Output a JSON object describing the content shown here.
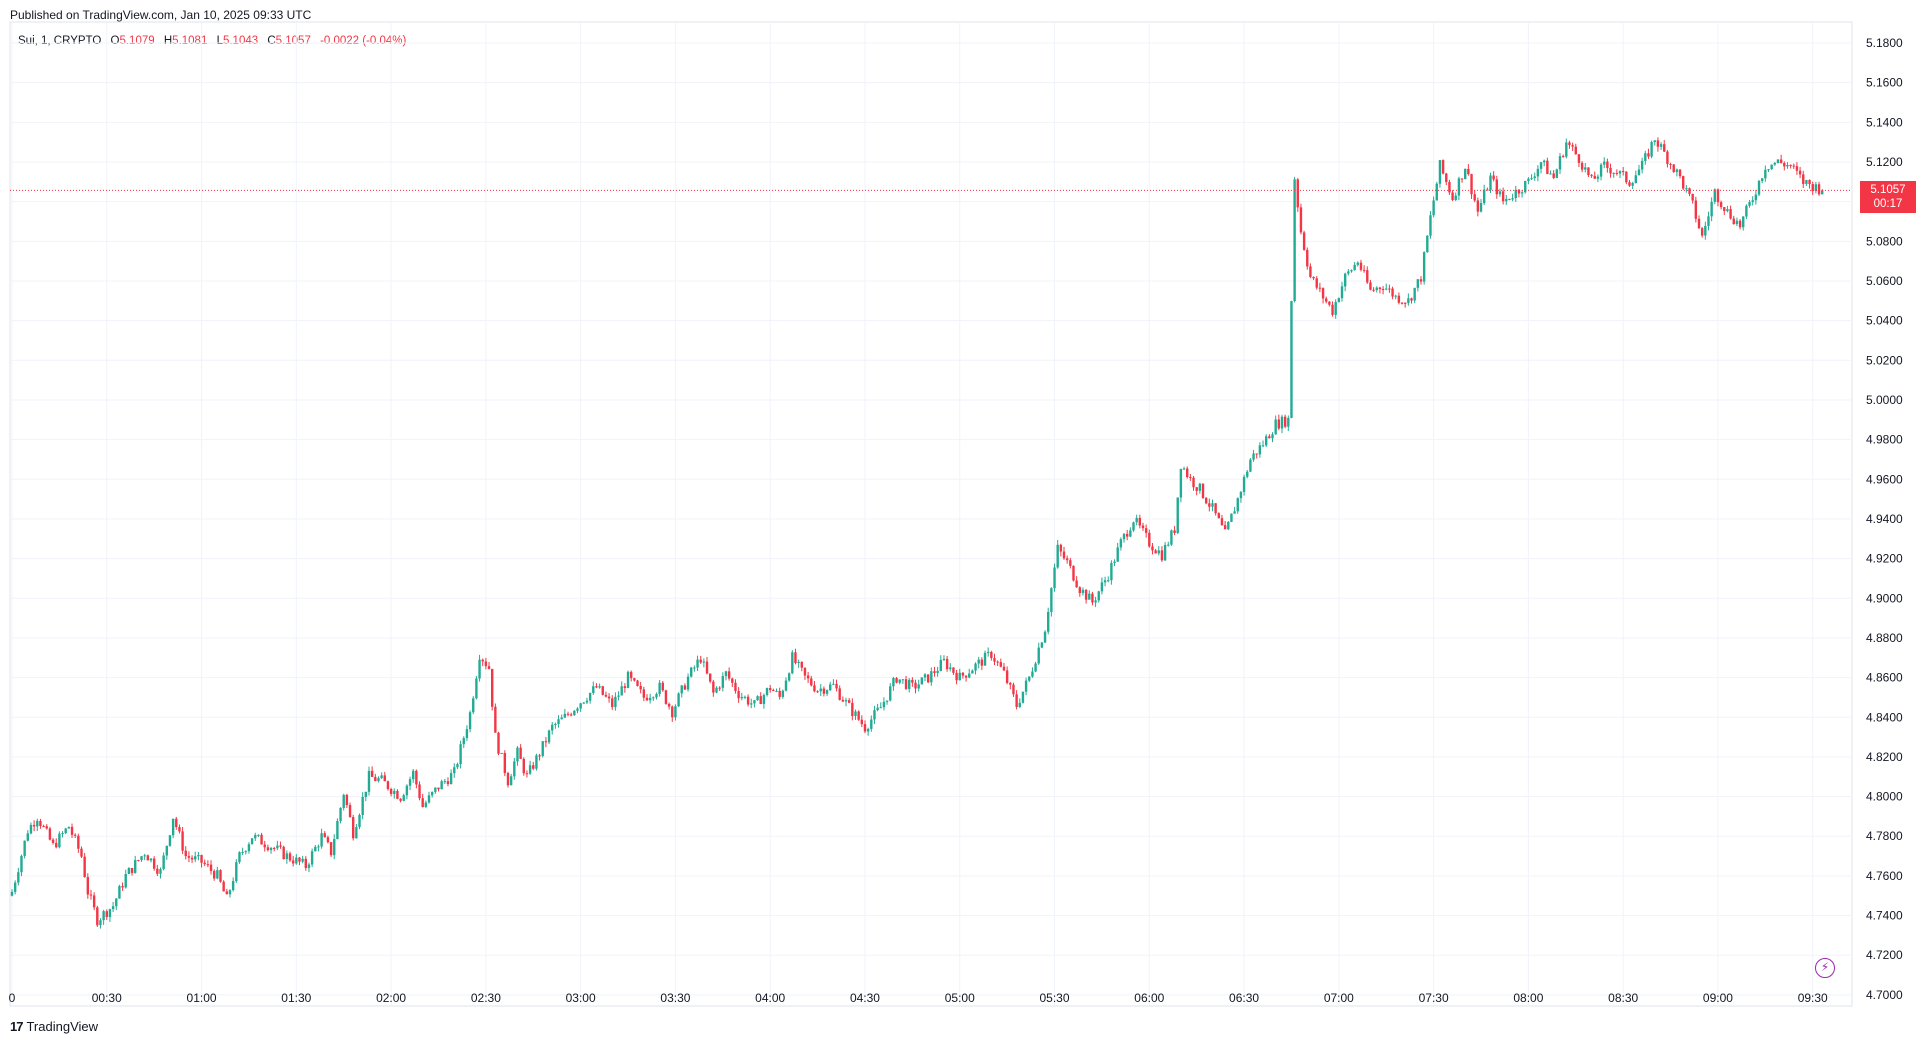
{
  "header": {
    "published": "Published on TradingView.com, Jan 10, 2025 09:33 UTC"
  },
  "legend": {
    "symbol": "Sui, 1, CRYPTO",
    "o_label": "O",
    "o_value": "5.1079",
    "h_label": "H",
    "h_value": "5.1081",
    "l_label": "L",
    "l_value": "5.1043",
    "c_label": "C",
    "c_value": "5.1057",
    "change": "-0.0022 (-0.04%)"
  },
  "price_tag": {
    "price": "5.1057",
    "countdown": "00:17"
  },
  "footer": {
    "brand_logo": "17",
    "brand": "TradingView"
  },
  "colors": {
    "up": "#22ab94",
    "down": "#f23645",
    "grid": "#f0f3fa",
    "last_price_line": "#f23645"
  },
  "chart_data": {
    "type": "candlestick",
    "title": "",
    "xlabel": "",
    "ylabel": "",
    "ylim": [
      4.6944,
      5.1906
    ],
    "y_ticks": [
      "5.1800",
      "5.1600",
      "5.1400",
      "5.1200",
      "5.1000",
      "5.0800",
      "5.0600",
      "5.0400",
      "5.0200",
      "5.0000",
      "4.9800",
      "4.9600",
      "4.9400",
      "4.9200",
      "4.9000",
      "4.8800",
      "4.8600",
      "4.8400",
      "4.8200",
      "4.8000",
      "4.7800",
      "4.7600",
      "4.7400",
      "4.7200",
      "4.7000"
    ],
    "x_ticks": [
      "0",
      "00:30",
      "01:00",
      "01:30",
      "02:00",
      "02:30",
      "03:00",
      "03:30",
      "04:00",
      "04:30",
      "05:00",
      "05:30",
      "06:00",
      "06:30",
      "07:00",
      "07:30",
      "08:00",
      "08:30",
      "09:00",
      "09:30"
    ],
    "last_price": 5.1057,
    "grid": true,
    "close_path": [
      [
        "00:00",
        4.752
      ],
      [
        "00:05",
        4.783
      ],
      [
        "00:08",
        4.79
      ],
      [
        "00:13",
        4.775
      ],
      [
        "00:18",
        4.785
      ],
      [
        "00:22",
        4.77
      ],
      [
        "00:24",
        4.752
      ],
      [
        "00:27",
        4.738
      ],
      [
        "00:32",
        4.745
      ],
      [
        "00:36",
        4.76
      ],
      [
        "00:42",
        4.772
      ],
      [
        "00:47",
        4.762
      ],
      [
        "00:51",
        4.79
      ],
      [
        "00:55",
        4.77
      ],
      [
        "01:00",
        4.767
      ],
      [
        "01:05",
        4.76
      ],
      [
        "01:08",
        4.748
      ],
      [
        "01:12",
        4.77
      ],
      [
        "01:16",
        4.78
      ],
      [
        "01:22",
        4.775
      ],
      [
        "01:27",
        4.77
      ],
      [
        "01:33",
        4.765
      ],
      [
        "01:38",
        4.78
      ],
      [
        "01:41",
        4.772
      ],
      [
        "01:45",
        4.802
      ],
      [
        "01:48",
        4.782
      ],
      [
        "01:53",
        4.81
      ],
      [
        "01:57",
        4.808
      ],
      [
        "02:03",
        4.8
      ],
      [
        "02:07",
        4.812
      ],
      [
        "02:10",
        4.795
      ],
      [
        "02:15",
        4.805
      ],
      [
        "02:20",
        4.812
      ],
      [
        "02:25",
        4.842
      ],
      [
        "02:28",
        4.872
      ],
      [
        "02:31",
        4.865
      ],
      [
        "02:33",
        4.83
      ],
      [
        "02:37",
        4.808
      ],
      [
        "02:40",
        4.822
      ],
      [
        "02:43",
        4.81
      ],
      [
        "02:47",
        4.822
      ],
      [
        "02:51",
        4.835
      ],
      [
        "02:55",
        4.84
      ],
      [
        "03:00",
        4.848
      ],
      [
        "03:05",
        4.855
      ],
      [
        "03:10",
        4.846
      ],
      [
        "03:15",
        4.86
      ],
      [
        "03:20",
        4.85
      ],
      [
        "03:25",
        4.855
      ],
      [
        "03:29",
        4.843
      ],
      [
        "03:34",
        4.86
      ],
      [
        "03:38",
        4.87
      ],
      [
        "03:42",
        4.852
      ],
      [
        "03:46",
        4.862
      ],
      [
        "03:50",
        4.852
      ],
      [
        "03:55",
        4.846
      ],
      [
        "04:00",
        4.855
      ],
      [
        "04:03",
        4.85
      ],
      [
        "04:07",
        4.87
      ],
      [
        "04:11",
        4.86
      ],
      [
        "04:15",
        4.854
      ],
      [
        "04:20",
        4.856
      ],
      [
        "04:25",
        4.845
      ],
      [
        "04:30",
        4.835
      ],
      [
        "04:35",
        4.845
      ],
      [
        "04:40",
        4.86
      ],
      [
        "04:45",
        4.855
      ],
      [
        "04:50",
        4.86
      ],
      [
        "04:55",
        4.868
      ],
      [
        "05:00",
        4.86
      ],
      [
        "05:05",
        4.866
      ],
      [
        "05:10",
        4.872
      ],
      [
        "05:14",
        4.862
      ],
      [
        "05:18",
        4.846
      ],
      [
        "05:22",
        4.86
      ],
      [
        "05:27",
        4.885
      ],
      [
        "05:31",
        4.925
      ],
      [
        "05:34",
        4.918
      ],
      [
        "05:38",
        4.905
      ],
      [
        "05:42",
        4.898
      ],
      [
        "05:47",
        4.912
      ],
      [
        "05:51",
        4.928
      ],
      [
        "05:55",
        4.94
      ],
      [
        "06:00",
        4.928
      ],
      [
        "06:04",
        4.922
      ],
      [
        "06:08",
        4.935
      ],
      [
        "06:10",
        4.968
      ],
      [
        "06:13",
        4.96
      ],
      [
        "06:16",
        4.955
      ],
      [
        "06:20",
        4.945
      ],
      [
        "06:24",
        4.932
      ],
      [
        "06:28",
        4.95
      ],
      [
        "06:32",
        4.97
      ],
      [
        "06:36",
        4.978
      ],
      [
        "06:40",
        4.988
      ],
      [
        "06:44",
        4.99
      ],
      [
        "06:46",
        5.112
      ],
      [
        "06:48",
        5.085
      ],
      [
        "06:51",
        5.062
      ],
      [
        "06:55",
        5.052
      ],
      [
        "06:58",
        5.045
      ],
      [
        "07:02",
        5.062
      ],
      [
        "07:06",
        5.07
      ],
      [
        "07:10",
        5.055
      ],
      [
        "07:14",
        5.058
      ],
      [
        "07:18",
        5.052
      ],
      [
        "07:22",
        5.05
      ],
      [
        "07:26",
        5.062
      ],
      [
        "07:29",
        5.092
      ],
      [
        "07:32",
        5.118
      ],
      [
        "07:36",
        5.102
      ],
      [
        "07:40",
        5.118
      ],
      [
        "07:44",
        5.095
      ],
      [
        "07:48",
        5.112
      ],
      [
        "07:52",
        5.1
      ],
      [
        "07:56",
        5.105
      ],
      [
        "08:00",
        5.11
      ],
      [
        "08:04",
        5.12
      ],
      [
        "08:08",
        5.112
      ],
      [
        "08:12",
        5.13
      ],
      [
        "08:16",
        5.122
      ],
      [
        "08:20",
        5.11
      ],
      [
        "08:24",
        5.118
      ],
      [
        "08:28",
        5.115
      ],
      [
        "08:32",
        5.11
      ],
      [
        "08:36",
        5.118
      ],
      [
        "08:40",
        5.132
      ],
      [
        "08:44",
        5.122
      ],
      [
        "08:48",
        5.112
      ],
      [
        "08:52",
        5.098
      ],
      [
        "08:55",
        5.082
      ],
      [
        "08:59",
        5.105
      ],
      [
        "09:03",
        5.095
      ],
      [
        "09:07",
        5.088
      ],
      [
        "09:11",
        5.102
      ],
      [
        "09:15",
        5.118
      ],
      [
        "09:19",
        5.12
      ],
      [
        "09:23",
        5.118
      ],
      [
        "09:27",
        5.11
      ],
      [
        "09:33",
        5.106
      ]
    ]
  }
}
